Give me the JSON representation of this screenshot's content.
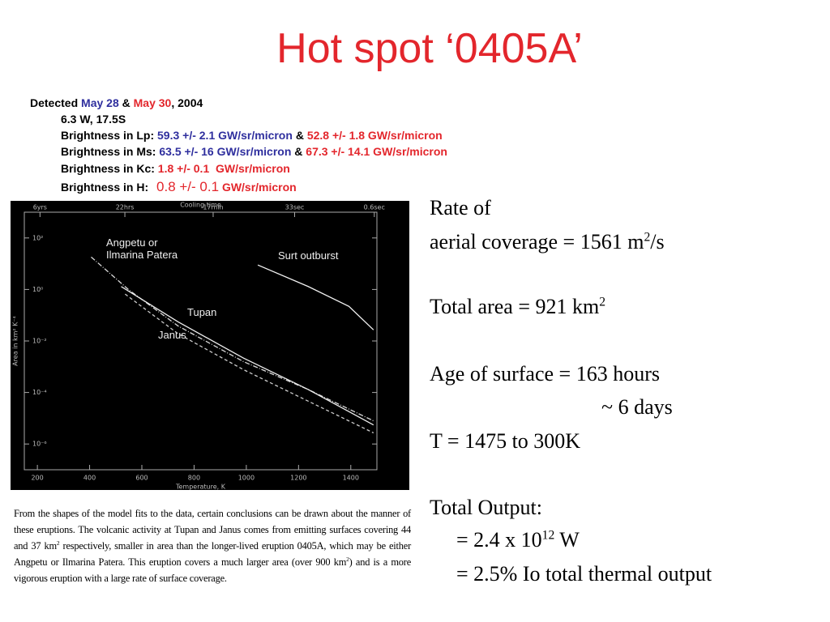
{
  "title": "Hot spot ‘0405A’",
  "detection": {
    "prefix": "Detected",
    "date1": "May 28",
    "joiner": "&",
    "date2": "May 30",
    "suffix": ", 2004"
  },
  "location": "6.3 W, 17.5S",
  "brightness": [
    {
      "label": "Brightness in Lp:",
      "first": "59.3 +/- 2.1 GW/sr/micron",
      "joiner": "&",
      "second": "52.8 +/- 1.8 GW/sr/micron"
    },
    {
      "label": "Brightness in Ms:",
      "first": "63.5 +/- 16 GW/sr/micron",
      "joiner": "&",
      "second": "67.3 +/- 14.1 GW/sr/micron"
    },
    {
      "label": "Brightness in Kc:",
      "second": "1.8 +/- 0.1  GW/sr/micron"
    },
    {
      "label": "Brightness in H:",
      "value": "0.8 +/- 0.1",
      "unit": "GW/sr/micron"
    }
  ],
  "summary": {
    "rate_line1": "Rate of",
    "rate_line2": {
      "text": "aerial coverage = 1561 m",
      "sup": "2",
      "tail": "/s"
    },
    "area": {
      "text": "Total area = 921 km",
      "sup": "2"
    },
    "age": "Age of surface = 163 hours",
    "age_days": "~ 6 days",
    "temperature": "T = 1475 to 300K",
    "output_label": "Total Output:",
    "output_watts": {
      "text": "= 2.4 x 10",
      "sup": "12",
      "tail": " W"
    },
    "output_percent": "= 2.5% Io total thermal output"
  },
  "caption": {
    "part1": "From the shapes of the model fits to the data, certain conclusions can be drawn about the manner of these eruptions. The volcanic activity at Tupan and Janus comes from emitting surfaces covering 44 and 37 km",
    "sup1": "2",
    "part2": " respectively, smaller in area than the longer-lived eruption 0405A, which may be either Angpetu or Ilmarina Patera. This eruption covers a much larger area (over 900 km",
    "sup2": "2",
    "part3": ") and is a more vigorous eruption with a large rate of surface coverage."
  },
  "figure": {
    "type": "line",
    "xlabel": "Temperature, K",
    "ylabel": "Area in km² K⁻⁴",
    "x2label": "Cooling time",
    "log_y": true,
    "xlim": [
      150,
      1500
    ],
    "ylim": [
      1e-07,
      1000
    ],
    "xticks": [
      200,
      400,
      600,
      800,
      1000,
      1200,
      1400
    ],
    "yticks": [
      {
        "value": 100,
        "label": "10²"
      },
      {
        "value": 1,
        "label": "10⁰"
      },
      {
        "value": 0.01,
        "label": "10⁻²"
      },
      {
        "value": 0.0001,
        "label": "10⁻⁴"
      },
      {
        "value": 1e-06,
        "label": "10⁻⁶"
      }
    ],
    "x2ticks": [
      {
        "value": 210,
        "label": "6yrs"
      },
      {
        "value": 535,
        "label": "22hrs"
      },
      {
        "value": 873,
        "label": "17min"
      },
      {
        "value": 1185,
        "label": "33sec"
      },
      {
        "value": 1490,
        "label": "0.6sec"
      }
    ],
    "series": [
      {
        "name": "Angpetu or Ilmarina Patera",
        "color": "#d8d8d8",
        "style": "dashdot",
        "x": [
          406,
          552,
          739,
          988,
          1237,
          1487
        ],
        "values": [
          18.2,
          0.93,
          0.038,
          0.0016,
          0.00013,
          7.9e-06
        ]
      },
      {
        "name": "Tupan",
        "color": "#eeeeee",
        "style": "solid",
        "x": [
          521,
          739,
          988,
          1237,
          1487
        ],
        "values": [
          1.3,
          0.055,
          0.0022,
          0.00013,
          5.5e-06
        ]
      },
      {
        "name": "Janus",
        "color": "#cccccc",
        "style": "dashed",
        "x": [
          536,
          739,
          988,
          1237,
          1487
        ],
        "values": [
          0.66,
          0.019,
          0.00078,
          4.6e-05,
          2.7e-06
        ]
      },
      {
        "name": "Surt outburst",
        "color": "#f2f2f2",
        "style": "solid",
        "x": [
          1044,
          1237,
          1393,
          1487
        ],
        "values": [
          8.9,
          1.3,
          0.22,
          0.027
        ]
      }
    ]
  }
}
